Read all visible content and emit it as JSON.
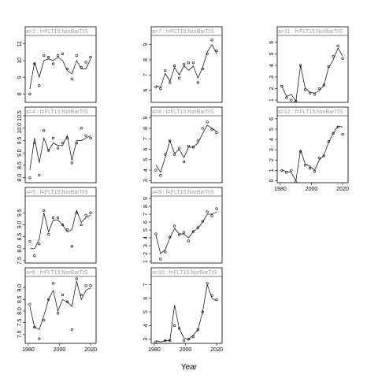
{
  "xlabel": "Year",
  "chart_data": [
    {
      "type": "line",
      "title": "a=3 : f=FLT15:NorBarTrS",
      "x": [
        1981,
        1984,
        1987,
        1990,
        1993,
        1996,
        1999,
        2002,
        2005,
        2008,
        2011,
        2014,
        2017,
        2020
      ],
      "xlim": [
        1978,
        2023.5
      ],
      "ylim": [
        7.5,
        11.5
      ],
      "yticks": [
        8,
        9,
        10,
        11
      ],
      "series": [
        {
          "style": "points",
          "color": "#000000",
          "values": [
            8,
            9.8,
            8.5,
            10.3,
            10.2,
            9.8,
            10.3,
            10.4,
            9.5,
            8.9,
            10.3,
            9.6,
            9.9,
            10.2
          ]
        },
        {
          "style": "line",
          "color": "#000000",
          "values": [
            8.3,
            9.9,
            9,
            10,
            10.1,
            10,
            10.2,
            10,
            9.4,
            9.2,
            10,
            9.5,
            9.5,
            10.1
          ]
        }
      ]
    },
    {
      "type": "line",
      "title": "a=4 : f=FLT15:NorBarTrS",
      "x": [
        1981,
        1984,
        1987,
        1990,
        1993,
        1996,
        1999,
        2002,
        2005,
        2008,
        2011,
        2014,
        2017,
        2020
      ],
      "xlim": [
        1978,
        2023.5
      ],
      "ylim": [
        7.8,
        10.5
      ],
      "yticks": [
        {
          "value": 8,
          "label": "8.0"
        },
        8.5,
        {
          "value": 9,
          "label": "9.0"
        },
        9.5,
        {
          "value": 10,
          "label": "10.0"
        },
        10.5
      ],
      "series": [
        {
          "style": "points",
          "color": "#000000",
          "values": [
            8,
            9.4,
            8.1,
            9.9,
            9.1,
            9.6,
            9.2,
            9.4,
            9.6,
            8.6,
            9.4,
            10,
            9.7,
            9.6
          ]
        },
        {
          "style": "line",
          "color": "#000000",
          "values": [
            8.3,
            9.6,
            8.6,
            9.6,
            9.1,
            9.4,
            9.3,
            9.3,
            9.7,
            8.7,
            9.5,
            9.5,
            9.6,
            9.7
          ]
        }
      ]
    },
    {
      "type": "line",
      "title": "a=5 : f=FLT15:NorBarTrS",
      "x": [
        1981,
        1984,
        1987,
        1990,
        1993,
        1996,
        1999,
        2002,
        2005,
        2008,
        2011,
        2014,
        2017,
        2020
      ],
      "xlim": [
        1978,
        2023.5
      ],
      "ylim": [
        7.4,
        10.2
      ],
      "yticks": [
        7.5,
        {
          "value": 8,
          "label": "8.0"
        },
        8.5,
        {
          "value": 9,
          "label": "9.0"
        },
        9.5
      ],
      "series": [
        {
          "style": "points",
          "color": "#000000",
          "values": [
            8.3,
            7.7,
            8.2,
            9.6,
            8.6,
            9.3,
            9.3,
            9.0,
            8.8,
            8.1,
            9.5,
            9.0,
            9.4,
            9.5
          ]
        },
        {
          "style": "line",
          "color": "#000000",
          "values": [
            8.0,
            8.0,
            8.4,
            9.5,
            8.7,
            9.2,
            9.2,
            9.0,
            8.7,
            8.8,
            9.6,
            9.1,
            9.3,
            9.4
          ]
        }
      ]
    },
    {
      "type": "line",
      "title": "a=6 : f=FLT15:NorBarTrS",
      "x": [
        1981,
        1984,
        1987,
        1990,
        1993,
        1996,
        1999,
        2002,
        2005,
        2008,
        2011,
        2014,
        2017,
        2020
      ],
      "xlim": [
        1978,
        2023.5
      ],
      "xticks": [
        1980,
        2000,
        2020
      ],
      "ylim": [
        6.6,
        9.5
      ],
      "yticks": [
        {
          "value": 7,
          "label": "7.0"
        },
        7.5,
        {
          "value": 8,
          "label": "8.0"
        },
        8.5,
        {
          "value": 9,
          "label": "9.0"
        }
      ],
      "series": [
        {
          "style": "points",
          "color": "#000000",
          "values": [
            8.3,
            7.3,
            6.8,
            7.6,
            8.5,
            9.2,
            7.9,
            8.7,
            8.4,
            7.2,
            9.4,
            8.7,
            9.1,
            9.1
          ]
        },
        {
          "style": "line",
          "color": "#000000",
          "values": [
            8.2,
            7.3,
            7.2,
            7.8,
            8.5,
            8.9,
            8.0,
            8.5,
            8.4,
            8.2,
            9.3,
            8.5,
            8.9,
            9.0
          ]
        }
      ]
    },
    {
      "type": "line",
      "title": "a=7 : f=FLT15:NorBarTrS",
      "x": [
        1981,
        1984,
        1987,
        1990,
        1993,
        1996,
        1999,
        2002,
        2005,
        2008,
        2011,
        2014,
        2017,
        2020
      ],
      "xlim": [
        1978,
        2023.5
      ],
      "ylim": [
        5.2,
        9.6
      ],
      "yticks": [
        6,
        7,
        8,
        9
      ],
      "series": [
        {
          "style": "points",
          "color": "#000000",
          "values": [
            6.2,
            6.1,
            7.3,
            6.5,
            7.6,
            6.8,
            7.7,
            7.8,
            7.8,
            6.5,
            7.4,
            8.4,
            9.3,
            8.6
          ]
        },
        {
          "style": "line",
          "color": "#000000",
          "values": [
            6.3,
            6.2,
            7.1,
            6.6,
            7.5,
            7.0,
            7.6,
            7.3,
            7.6,
            6.8,
            7.5,
            8.5,
            9.0,
            8.4
          ]
        }
      ]
    },
    {
      "type": "line",
      "title": "a=8 : f=FLT15:NorBarTrS",
      "x": [
        1981,
        1984,
        1987,
        1990,
        1993,
        1996,
        1999,
        2002,
        2005,
        2008,
        2011,
        2014,
        2017,
        2020
      ],
      "xlim": [
        1978,
        2023.5
      ],
      "ylim": [
        2.8,
        9.2
      ],
      "yticks": [
        3,
        4,
        5,
        6,
        7,
        8,
        9
      ],
      "series": [
        {
          "style": "points",
          "color": "#000000",
          "values": [
            4,
            3.5,
            5.5,
            6.8,
            5.5,
            6.1,
            4.8,
            6.3,
            6.2,
            6.8,
            8.0,
            8.6,
            7.9,
            7.6
          ]
        },
        {
          "style": "line",
          "color": "#000000",
          "values": [
            4.5,
            3.8,
            5.2,
            6.8,
            5.6,
            6.0,
            5.2,
            6.2,
            6.2,
            6.6,
            7.5,
            8.3,
            8.0,
            7.7
          ]
        }
      ]
    },
    {
      "type": "line",
      "title": "a=9 : f=FLT15:NorBarTrS",
      "x": [
        1981,
        1984,
        1987,
        1990,
        1993,
        1996,
        1999,
        2002,
        2005,
        2008,
        2011,
        2014,
        2017,
        2020
      ],
      "xlim": [
        1978,
        2023.5
      ],
      "ylim": [
        0.8,
        9.3
      ],
      "yticks": [
        1,
        2,
        3,
        4,
        5,
        6,
        7,
        8,
        9
      ],
      "series": [
        {
          "style": "points",
          "color": "#000000",
          "values": [
            4.5,
            1.3,
            2.2,
            4.1,
            5.5,
            4.4,
            4.7,
            3.6,
            4.8,
            5.3,
            6.1,
            7.3,
            6.8,
            7.7
          ]
        },
        {
          "style": "line",
          "color": "#000000",
          "values": [
            4.3,
            2.0,
            2.5,
            4.0,
            5.2,
            4.5,
            4.5,
            4.0,
            4.8,
            5.2,
            6.0,
            7.0,
            7.0,
            7.3
          ]
        }
      ]
    },
    {
      "type": "line",
      "title": "a=10 : f=FLT15:NorBarTrS",
      "x": [
        1981,
        1984,
        1987,
        1990,
        1993,
        1996,
        1999,
        2002,
        2005,
        2008,
        2011,
        2014,
        2017,
        2020
      ],
      "xlim": [
        1978,
        2023.5
      ],
      "xticks": [
        1980,
        2000,
        2020
      ],
      "ylim": [
        2.7,
        7.6
      ],
      "yticks": [
        3,
        4,
        5,
        6,
        7
      ],
      "series": [
        {
          "style": "points",
          "color": "#000000",
          "values": [
            2.8,
            2.5,
            2.9,
            2.9,
            4.0,
            3.8,
            2.9,
            3.0,
            3.2,
            3.7,
            5.0,
            7.1,
            6.2,
            5.9
          ]
        },
        {
          "style": "line",
          "color": "#000000",
          "values": [
            2.9,
            2.8,
            2.9,
            2.9,
            5.5,
            3.8,
            3.1,
            3.0,
            3.3,
            3.7,
            5.0,
            7.0,
            6.0,
            5.8
          ]
        }
      ]
    },
    {
      "type": "line",
      "title": "a=11 : f=FLT15:NorBarTrS",
      "x": [
        1981,
        1984,
        1987,
        1990,
        1993,
        1996,
        1999,
        2002,
        2005,
        2008,
        2011,
        2014,
        2017,
        2020
      ],
      "xlim": [
        1978,
        2023.5
      ],
      "ylim": [
        0.8,
        6.6
      ],
      "yticks": [
        1,
        2,
        3,
        4,
        5,
        6
      ],
      "series": [
        {
          "style": "points",
          "color": "#000000",
          "values": [
            2.2,
            1.2,
            1.0,
            0.9,
            4.0,
            1.9,
            1.6,
            1.5,
            2.0,
            2.3,
            3.9,
            4.8,
            5.7,
            4.6
          ]
        },
        {
          "style": "line",
          "color": "#000000",
          "values": [
            2.2,
            1.3,
            1.5,
            0.9,
            4.0,
            2.0,
            1.7,
            1.6,
            1.8,
            2.3,
            3.8,
            4.5,
            5.5,
            4.8
          ]
        }
      ]
    },
    {
      "type": "line",
      "title": "a=12 : f=FLT15:NorBarTrS",
      "x": [
        1981,
        1984,
        1987,
        1990,
        1993,
        1996,
        1999,
        2002,
        2005,
        2008,
        2011,
        2014,
        2017,
        2020
      ],
      "xlim": [
        1978,
        2023.5
      ],
      "xticks": [
        1980,
        2000,
        2020
      ],
      "ylim": [
        -0.2,
        6.3
      ],
      "yticks": [
        0,
        1,
        2,
        3,
        4,
        5,
        6
      ],
      "series": [
        {
          "style": "points",
          "color": "#000000",
          "values": [
            1.0,
            0.8,
            1.0,
            -0.1,
            2.8,
            1.5,
            1.2,
            0.9,
            2.2,
            2.4,
            3.8,
            4.6,
            5.2,
            4.5
          ]
        },
        {
          "style": "line",
          "color": "#000000",
          "values": [
            1.0,
            0.9,
            0.8,
            0.0,
            3.0,
            1.6,
            1.4,
            1.0,
            2.0,
            2.5,
            3.7,
            4.6,
            5.3,
            5.2
          ]
        }
      ]
    }
  ]
}
